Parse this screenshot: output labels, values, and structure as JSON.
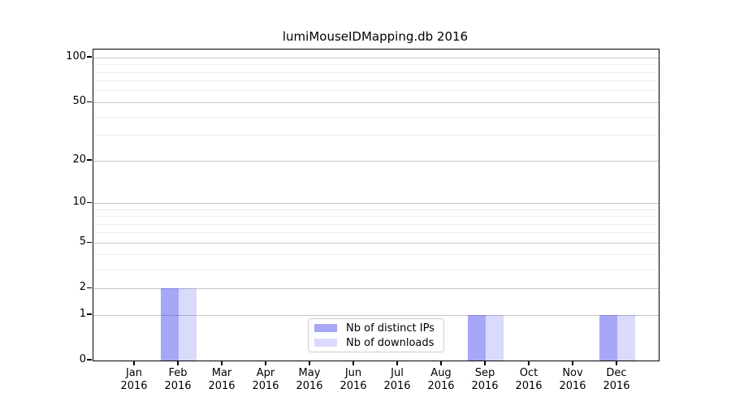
{
  "chart_data": {
    "type": "bar",
    "title": "lumiMouseIDMapping.db 2016",
    "categories": [
      "Jan",
      "Feb",
      "Mar",
      "Apr",
      "May",
      "Jun",
      "Jul",
      "Aug",
      "Sep",
      "Oct",
      "Nov",
      "Dec"
    ],
    "category_year": "2016",
    "series": [
      {
        "name": "Nb of distinct IPs",
        "values": [
          0,
          2,
          0,
          0,
          0,
          0,
          0,
          0,
          1,
          0,
          0,
          1
        ],
        "base_color": "#2222ee",
        "alpha": 0.4,
        "blended_hex": "#a7a7f8"
      },
      {
        "name": "Nb of downloads",
        "values": [
          0,
          2,
          0,
          0,
          0,
          0,
          0,
          0,
          1,
          0,
          0,
          1
        ],
        "base_color": "#2222ee",
        "alpha": 0.17,
        "blended_hex": "#d9d9fc"
      }
    ],
    "yaxis": {
      "scale": "log1p",
      "ticks": [
        0,
        1,
        2,
        5,
        10,
        20,
        50,
        100
      ],
      "minor_ticks": [
        3,
        4,
        6,
        7,
        8,
        9,
        30,
        40,
        60,
        70,
        80,
        90
      ],
      "range_top": 113
    },
    "xlabel": "",
    "ylabel": "",
    "grid": {
      "major_color": "#c6c6c6",
      "minor_color": "#ececec"
    },
    "legend": {
      "position": "lower center",
      "items": [
        "Nb of distinct IPs",
        "Nb of downloads"
      ]
    }
  }
}
